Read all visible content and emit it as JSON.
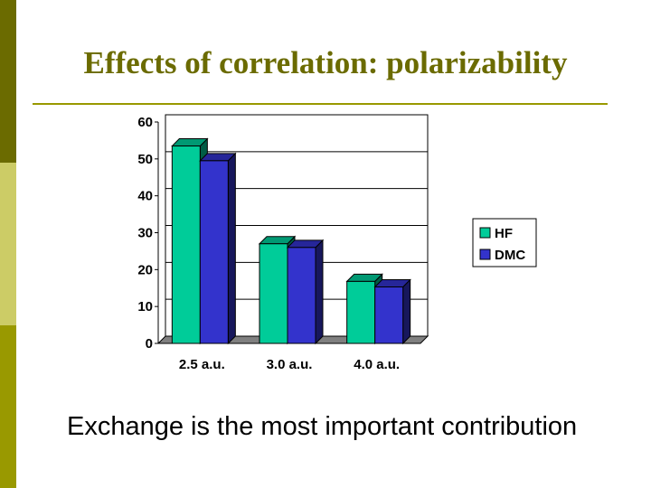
{
  "slide": {
    "title": "Effects of correlation: polarizability",
    "caption": "Exchange is the most important contribution"
  },
  "chart_data": {
    "type": "bar",
    "categories": [
      "2.5 a.u.",
      "3.0 a.u.",
      "4.0 a.u."
    ],
    "series": [
      {
        "name": "HF",
        "values": [
          53.5,
          27,
          16.8
        ],
        "color": "#00cc99"
      },
      {
        "name": "DMC",
        "values": [
          49.5,
          26,
          15.3
        ],
        "color": "#3333cc"
      }
    ],
    "yticks": [
      "0",
      "10",
      "20",
      "30",
      "40",
      "50",
      "60"
    ],
    "ylim": [
      0,
      60
    ],
    "grid": true,
    "legend": "right"
  }
}
